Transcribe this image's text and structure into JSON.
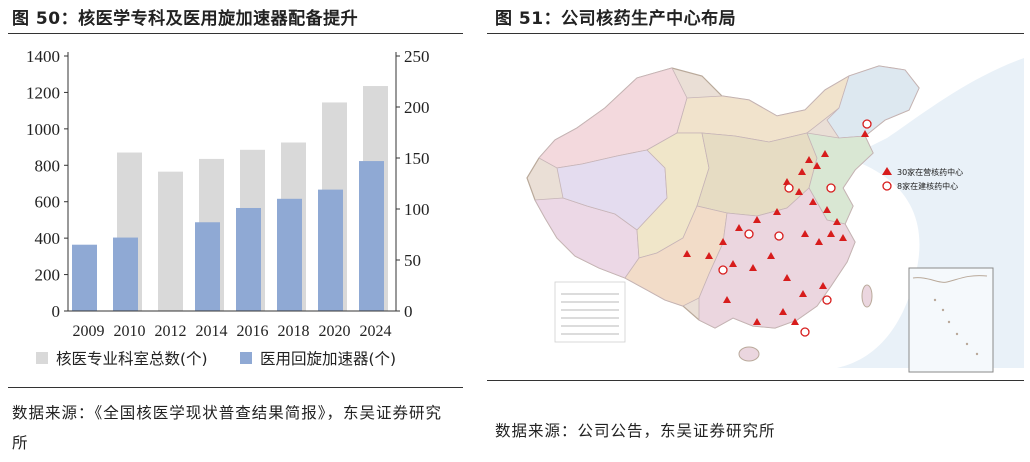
{
  "left_panel": {
    "title": "图 50：核医学专科及医用旋加速器配备提升",
    "source": "数据来源：《全国核医学现状普查结果简报》，东吴证券研究所"
  },
  "right_panel": {
    "title": "图 51：公司核药生产中心布局",
    "source": "数据来源：公司公告，东吴证券研究所",
    "map_legend": {
      "operating": "30家在营核药中心",
      "building": "8家在建核药中心"
    },
    "map_colors": {
      "operating": "#d71c1c",
      "building": "#d71c1c"
    }
  },
  "chart_data": {
    "type": "bar",
    "categories": [
      "2009",
      "2010",
      "2012",
      "2014",
      "2016",
      "2018",
      "2020",
      "2024"
    ],
    "series": [
      {
        "name": "核医专业科室总数(个)",
        "axis": "left",
        "color": "#d9d9d9",
        "values": [
          null,
          870,
          765,
          835,
          885,
          925,
          1145,
          1235
        ]
      },
      {
        "name": "医用回旋加速器(个)",
        "axis": "right",
        "color": "#8fa9d4",
        "values": [
          65,
          72,
          null,
          87,
          101,
          110,
          119,
          147
        ]
      }
    ],
    "ylim_left": [
      0,
      1400
    ],
    "yticks_left": [
      0,
      200,
      400,
      600,
      800,
      1000,
      1200,
      1400
    ],
    "ylim_right": [
      0,
      250
    ],
    "yticks_right": [
      0,
      50,
      100,
      150,
      200,
      250
    ],
    "legend_position": "bottom",
    "grid": false
  }
}
